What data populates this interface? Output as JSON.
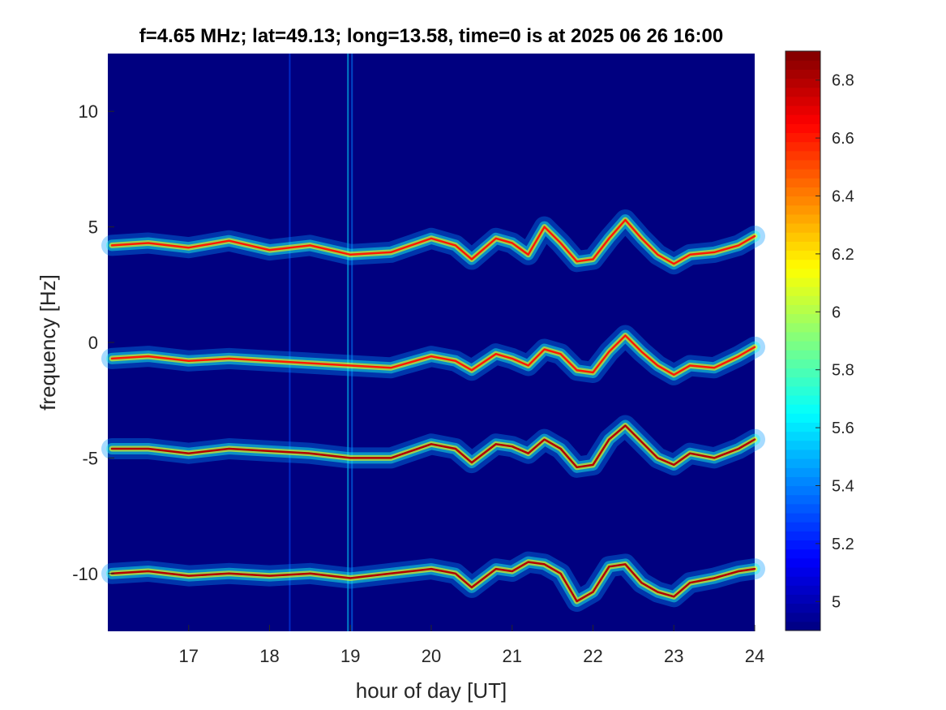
{
  "chart_data": {
    "type": "heatmap",
    "title": "f=4.65 MHz;  lat=49.13; long=13.58, time=0 is at 2025 06 26 16:00",
    "xlabel": "hour of day [UT]",
    "ylabel": "frequency [Hz]",
    "xlim": [
      16,
      24
    ],
    "ylim": [
      -12.5,
      12.5
    ],
    "xticks": [
      17,
      18,
      19,
      20,
      21,
      22,
      23,
      24
    ],
    "yticks": [
      -10,
      -5,
      0,
      5,
      10
    ],
    "colorbar": {
      "colormap": "jet",
      "clim": [
        4.9,
        6.9
      ],
      "ticks": [
        5,
        5.2,
        5.4,
        5.6,
        5.8,
        6,
        6.2,
        6.4,
        6.6,
        6.8
      ],
      "tick_labels": [
        "5",
        "5.2",
        "5.4",
        "5.6",
        "5.8",
        "6",
        "6.2",
        "6.4",
        "6.6",
        "6.8"
      ]
    },
    "background_value": 4.9,
    "traces": [
      {
        "x": [
          16.05,
          16.5,
          17.0,
          17.5,
          18.0,
          18.5,
          19.0,
          19.5,
          20.0,
          20.3,
          20.5,
          20.8,
          21.0,
          21.2,
          21.4,
          21.6,
          21.8,
          22.0,
          22.2,
          22.4,
          22.6,
          22.8,
          23.0,
          23.2,
          23.5,
          23.8,
          24.0
        ],
        "y": [
          4.2,
          4.3,
          4.1,
          4.4,
          4.0,
          4.2,
          3.8,
          3.9,
          4.5,
          4.2,
          3.6,
          4.5,
          4.3,
          3.8,
          5.0,
          4.3,
          3.5,
          3.6,
          4.5,
          5.3,
          4.5,
          3.8,
          3.4,
          3.8,
          3.9,
          4.2,
          4.6
        ],
        "intensity": 6.6
      },
      {
        "x": [
          16.05,
          16.5,
          17.0,
          17.5,
          18.0,
          18.5,
          19.0,
          19.5,
          20.0,
          20.3,
          20.5,
          20.8,
          21.0,
          21.2,
          21.4,
          21.6,
          21.8,
          22.0,
          22.2,
          22.4,
          22.6,
          22.8,
          23.0,
          23.2,
          23.5,
          23.8,
          24.0
        ],
        "y": [
          -0.7,
          -0.6,
          -0.8,
          -0.7,
          -0.8,
          -0.9,
          -1.0,
          -1.1,
          -0.6,
          -0.8,
          -1.2,
          -0.5,
          -0.7,
          -1.0,
          -0.3,
          -0.5,
          -1.2,
          -1.3,
          -0.4,
          0.3,
          -0.4,
          -1.0,
          -1.4,
          -1.0,
          -1.1,
          -0.6,
          -0.2
        ],
        "intensity": 6.6
      },
      {
        "x": [
          16.05,
          16.5,
          17.0,
          17.5,
          18.0,
          18.5,
          19.0,
          19.5,
          20.0,
          20.3,
          20.5,
          20.8,
          21.0,
          21.2,
          21.4,
          21.6,
          21.8,
          22.0,
          22.2,
          22.4,
          22.6,
          22.8,
          23.0,
          23.2,
          23.5,
          23.8,
          24.0
        ],
        "y": [
          -4.6,
          -4.6,
          -4.8,
          -4.6,
          -4.7,
          -4.8,
          -5.0,
          -5.0,
          -4.4,
          -4.6,
          -5.2,
          -4.4,
          -4.5,
          -4.8,
          -4.2,
          -4.6,
          -5.4,
          -5.3,
          -4.2,
          -3.6,
          -4.3,
          -5.0,
          -5.3,
          -4.8,
          -5.0,
          -4.6,
          -4.2
        ],
        "intensity": 6.8
      },
      {
        "x": [
          16.05,
          16.5,
          17.0,
          17.5,
          18.0,
          18.5,
          19.0,
          19.5,
          20.0,
          20.3,
          20.5,
          20.8,
          21.0,
          21.2,
          21.4,
          21.6,
          21.8,
          22.0,
          22.2,
          22.4,
          22.6,
          22.8,
          23.0,
          23.2,
          23.5,
          23.8,
          24.0
        ],
        "y": [
          -10.0,
          -9.9,
          -10.1,
          -10.0,
          -10.1,
          -10.0,
          -10.2,
          -10.0,
          -9.8,
          -10.0,
          -10.6,
          -9.8,
          -9.9,
          -9.5,
          -9.6,
          -10.0,
          -11.2,
          -10.8,
          -9.7,
          -9.6,
          -10.4,
          -10.8,
          -11.0,
          -10.4,
          -10.2,
          -9.9,
          -9.8
        ],
        "intensity": 6.8
      }
    ],
    "vertical_streaks": [
      {
        "x": 18.25,
        "intensity": 5.3
      },
      {
        "x": 18.97,
        "intensity": 5.6
      },
      {
        "x": 19.02,
        "intensity": 5.4
      }
    ]
  }
}
